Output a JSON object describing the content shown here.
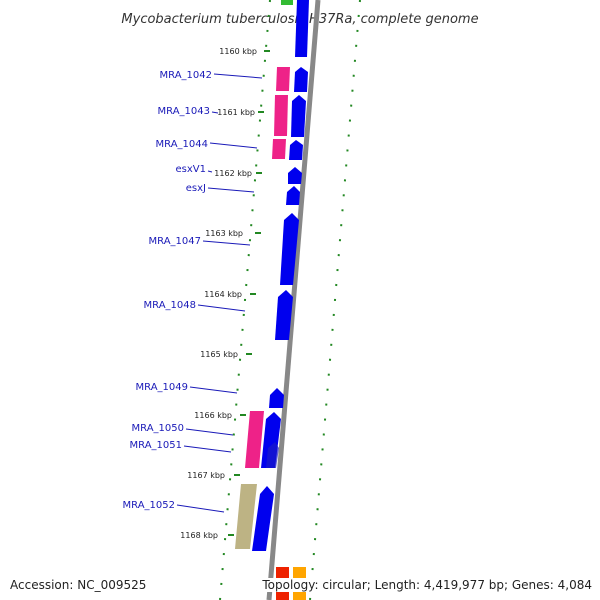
{
  "title": "Mycobacterium tuberculosis H37Ra, complete genome",
  "footer": {
    "accession": "Accession: NC_009525",
    "summary": "Topology: circular; Length: 4,419,977 bp; Genes: 4,084"
  },
  "ticks": [
    "1160 kbp",
    "1161 kbp",
    "1162 kbp",
    "1163 kbp",
    "1164 kbp",
    "1165 kbp",
    "1166 kbp",
    "1167 kbp",
    "1168 kbp"
  ],
  "gene_labels": [
    "MRA_1042",
    "MRA_1043",
    "MRA_1044",
    "esxV1",
    "esxJ",
    "MRA_1047",
    "MRA_1048",
    "MRA_1049",
    "MRA_1050",
    "MRA_1051",
    "MRA_1052"
  ],
  "colors": {
    "cds": "#0000ee",
    "pink": "#ee2288",
    "tan": "#bdb384",
    "green": "#33bb33",
    "red": "#ee2200",
    "orange": "#ffa500",
    "backbone": "#888888",
    "dots": "#228822",
    "label": "#1a1ab8"
  }
}
